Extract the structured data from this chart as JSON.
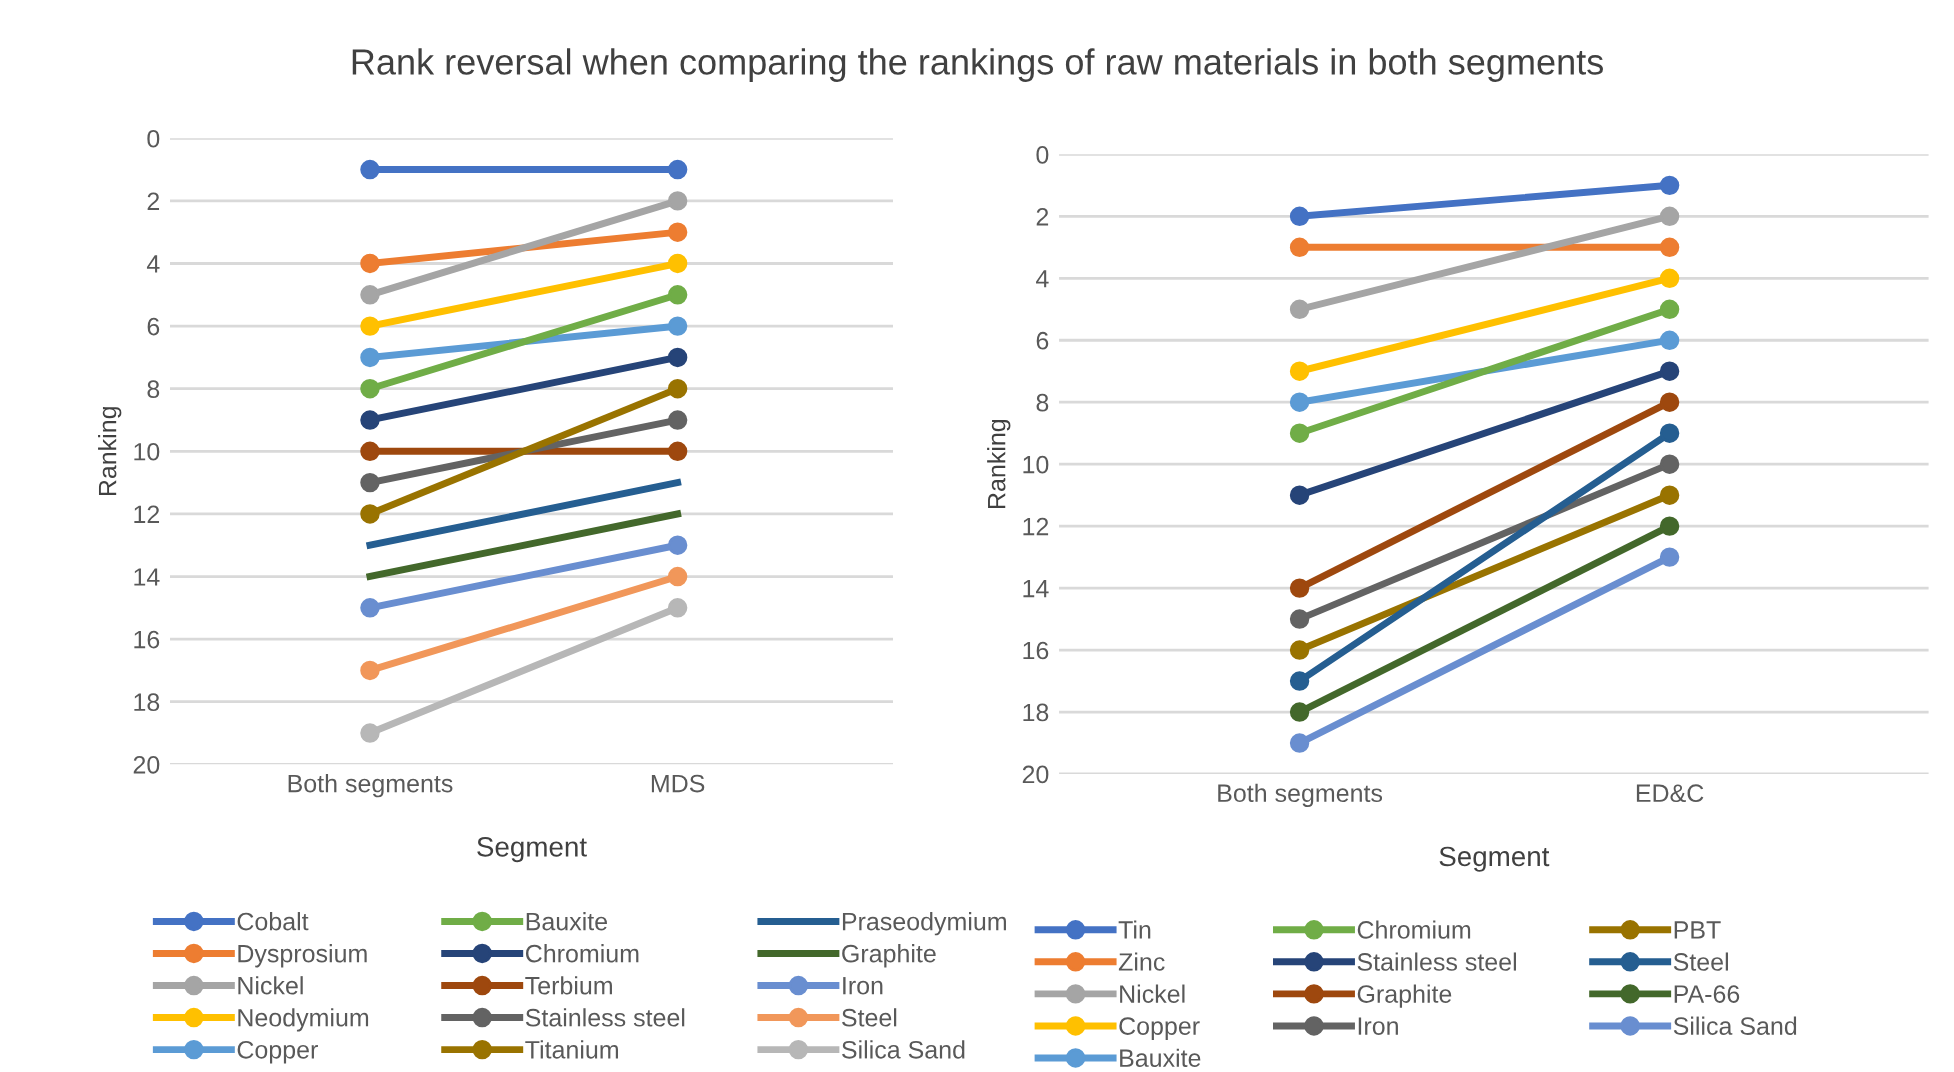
{
  "chart_data": [
    {
      "type": "line",
      "title": "Rank reversal when comparing the rankings of raw materials in both segments",
      "xlabel": "Segment",
      "ylabel": "Ranking",
      "categories": [
        "Both segments",
        "MDS"
      ],
      "ylim": [
        20,
        0
      ],
      "yticks": [
        0,
        2,
        4,
        6,
        8,
        10,
        12,
        14,
        16,
        18,
        20
      ],
      "grid": "y",
      "legend": "bottom",
      "marker": "circle",
      "series": [
        {
          "name": "Cobalt",
          "color": "#4472c4",
          "values": [
            1,
            1
          ]
        },
        {
          "name": "Dysprosium",
          "color": "#ed7d31",
          "values": [
            4,
            3
          ]
        },
        {
          "name": "Nickel",
          "color": "#a5a5a5",
          "values": [
            5,
            2
          ]
        },
        {
          "name": "Neodymium",
          "color": "#ffc000",
          "values": [
            6,
            4
          ]
        },
        {
          "name": "Copper",
          "color": "#5b9bd5",
          "values": [
            7,
            6
          ]
        },
        {
          "name": "Bauxite",
          "color": "#70ad47",
          "values": [
            8,
            5
          ]
        },
        {
          "name": "Chromium",
          "color": "#264478",
          "values": [
            9,
            7
          ]
        },
        {
          "name": "Terbium",
          "color": "#9e480e",
          "values": [
            10,
            10
          ]
        },
        {
          "name": "Stainless steel",
          "color": "#636363",
          "values": [
            11,
            9
          ]
        },
        {
          "name": "Titanium",
          "color": "#997300",
          "values": [
            12,
            8
          ]
        },
        {
          "name": "Praseodymium",
          "color": "#255e91",
          "values": [
            13,
            11
          ],
          "marker": "none"
        },
        {
          "name": "Graphite",
          "color": "#43682b",
          "values": [
            14,
            12
          ],
          "marker": "none"
        },
        {
          "name": "Iron",
          "color": "#698ed0",
          "values": [
            15,
            13
          ]
        },
        {
          "name": "Steel",
          "color": "#f1975a",
          "values": [
            17,
            14
          ]
        },
        {
          "name": "Silica Sand",
          "color": "#b7b7b7",
          "values": [
            19,
            15
          ]
        }
      ]
    },
    {
      "type": "line",
      "xlabel": "Segment",
      "ylabel": "Ranking",
      "categories": [
        "Both segments",
        "ED&C"
      ],
      "ylim": [
        20,
        0
      ],
      "yticks": [
        0,
        2,
        4,
        6,
        8,
        10,
        12,
        14,
        16,
        18,
        20
      ],
      "grid": "y",
      "legend": "bottom",
      "marker": "circle",
      "series": [
        {
          "name": "Tin",
          "color": "#4472c4",
          "values": [
            2,
            1
          ]
        },
        {
          "name": "Zinc",
          "color": "#ed7d31",
          "values": [
            3,
            3
          ]
        },
        {
          "name": "Nickel",
          "color": "#a5a5a5",
          "values": [
            5,
            2
          ]
        },
        {
          "name": "Copper",
          "color": "#ffc000",
          "values": [
            7,
            4
          ]
        },
        {
          "name": "Bauxite",
          "color": "#5b9bd5",
          "values": [
            8,
            6
          ]
        },
        {
          "name": "Chromium",
          "color": "#70ad47",
          "values": [
            9,
            5
          ]
        },
        {
          "name": "Stainless steel",
          "color": "#264478",
          "values": [
            11,
            7
          ]
        },
        {
          "name": "Graphite",
          "color": "#9e480e",
          "values": [
            14,
            8
          ]
        },
        {
          "name": "Iron",
          "color": "#636363",
          "values": [
            15,
            10
          ]
        },
        {
          "name": "PBT",
          "color": "#997300",
          "values": [
            16,
            11
          ]
        },
        {
          "name": "Steel",
          "color": "#255e91",
          "values": [
            17,
            9
          ]
        },
        {
          "name": "PA-66",
          "color": "#43682b",
          "values": [
            18,
            12
          ]
        },
        {
          "name": "Silica Sand",
          "color": "#698ed0",
          "values": [
            19,
            13
          ]
        }
      ]
    }
  ]
}
